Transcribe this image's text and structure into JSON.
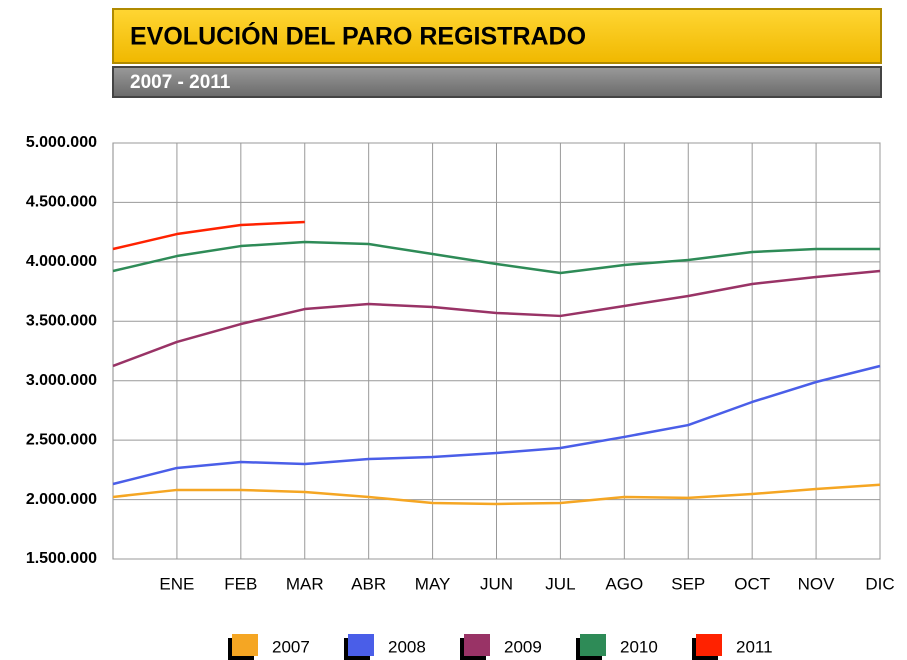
{
  "chart_data": {
    "type": "line",
    "title": "EVOLUCIÓN DEL PARO REGISTRADO",
    "subtitle": "2007 - 2011",
    "categories": [
      null,
      "ENE",
      "FEB",
      "MAR",
      "ABR",
      "MAY",
      "JUN",
      "JUL",
      "AGO",
      "SEP",
      "OCT",
      "NOV",
      "DIC"
    ],
    "series": [
      {
        "name": "2007",
        "color": "#f5a623",
        "values": [
          2022000,
          2081000,
          2081000,
          2064000,
          2022000,
          1971000,
          1963000,
          1971000,
          2022000,
          2014000,
          2047000,
          2089000,
          2125000
        ]
      },
      {
        "name": "2008",
        "color": "#4a5ee8",
        "values": [
          2131000,
          2266000,
          2316000,
          2299000,
          2341000,
          2358000,
          2392000,
          2434000,
          2527000,
          2627000,
          2821000,
          2989000,
          3124000
        ]
      },
      {
        "name": "2009",
        "color": "#993366",
        "values": [
          3124000,
          3326000,
          3477000,
          3603000,
          3645000,
          3620000,
          3570000,
          3545000,
          3629000,
          3713000,
          3814000,
          3873000,
          3923000
        ]
      },
      {
        "name": "2010",
        "color": "#2e8b57",
        "values": [
          3923000,
          4049000,
          4133000,
          4167000,
          4150000,
          4066000,
          3982000,
          3906000,
          3974000,
          4016000,
          4083000,
          4108000,
          4108000
        ]
      },
      {
        "name": "2011",
        "color": "#ff2200",
        "values": [
          4108000,
          4234000,
          4310000,
          4335000,
          null,
          null,
          null,
          null,
          null,
          null,
          null,
          null,
          null
        ]
      }
    ],
    "ylim": [
      1500000,
      5000000
    ],
    "yticks": [
      {
        "value": 1500000,
        "label": "1.500.000"
      },
      {
        "value": 2000000,
        "label": "2.000.000"
      },
      {
        "value": 2500000,
        "label": "2.500.000"
      },
      {
        "value": 3000000,
        "label": "3.000.000"
      },
      {
        "value": 3500000,
        "label": "3.500.000"
      },
      {
        "value": 4000000,
        "label": "4.000.000"
      },
      {
        "value": 4500000,
        "label": "4.500.000"
      },
      {
        "value": 5000000,
        "label": "5.000.000"
      }
    ],
    "grid": true,
    "legend": "bottom"
  }
}
